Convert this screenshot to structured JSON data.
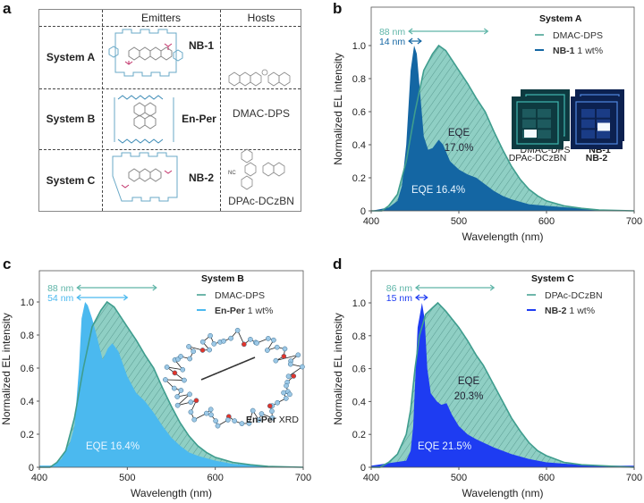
{
  "panel_letters": [
    "a",
    "b",
    "c",
    "d"
  ],
  "panel_a": {
    "headers": [
      "Emitters",
      "Hosts"
    ],
    "rows": [
      {
        "system": "System A",
        "emitter": "NB-1"
      },
      {
        "system": "System B",
        "emitter": "En-Per"
      },
      {
        "system": "System C",
        "emitter": "NB-2"
      }
    ],
    "hosts": [
      "DMAC-DPS",
      "DPAc-DCzBN"
    ],
    "host_label_nc": "NC"
  },
  "colors": {
    "host_line": "#3f9d8e",
    "host_fill": "#8fcfc4",
    "nb1": "#1466a3",
    "enper": "#4bb9ef",
    "nb2": "#1e3cf2"
  },
  "chart_data": [
    {
      "panel": "b",
      "type": "area",
      "title": "System A",
      "xlabel": "Wavelength (nm)",
      "ylabel": "Normalized EL intensity",
      "xlim": [
        400,
        700
      ],
      "ylim": [
        0,
        1.15
      ],
      "xticks": [
        "400",
        "500",
        "600",
        "700"
      ],
      "yticks": [
        "0",
        "0.2",
        "0.4",
        "0.6",
        "0.8",
        "1.0"
      ],
      "legend_placement": "top-right",
      "series": [
        {
          "name": "DMAC-DPS",
          "role": "host",
          "x": [
            400,
            412,
            420,
            430,
            440,
            450,
            460,
            465,
            470,
            477,
            485,
            490,
            500,
            510,
            520,
            530,
            540,
            550,
            560,
            570,
            580,
            590,
            600,
            620,
            640,
            660,
            700
          ],
          "y": [
            0,
            0,
            0.03,
            0.1,
            0.3,
            0.6,
            0.85,
            0.9,
            0.95,
            1.0,
            0.97,
            0.93,
            0.85,
            0.77,
            0.68,
            0.6,
            0.48,
            0.37,
            0.27,
            0.19,
            0.13,
            0.09,
            0.06,
            0.03,
            0.015,
            0.005,
            0
          ]
        },
        {
          "name": "NB-1",
          "suffix": " 1 wt%",
          "role": "dopant",
          "x": [
            400,
            420,
            430,
            435,
            440,
            445,
            449,
            452,
            456,
            460,
            465,
            470,
            477,
            482,
            490,
            500,
            510,
            520,
            530,
            540,
            550,
            560,
            580,
            600,
            650,
            700
          ],
          "y": [
            0,
            0.02,
            0.06,
            0.15,
            0.4,
            0.85,
            1.0,
            0.95,
            0.7,
            0.45,
            0.37,
            0.38,
            0.43,
            0.4,
            0.3,
            0.25,
            0.22,
            0.2,
            0.16,
            0.12,
            0.09,
            0.07,
            0.04,
            0.03,
            0.01,
            0
          ]
        }
      ],
      "fwhm": [
        {
          "label": "88 nm",
          "range": [
            443,
            533
          ],
          "series": "host"
        },
        {
          "label": "14 nm",
          "range": [
            443,
            457
          ],
          "series": "dopant"
        }
      ],
      "eqe": {
        "host_label": "EQE",
        "host_value": "17.0%",
        "dopant_label": "EQE 16.4%"
      },
      "insets": [
        "DMAC-DPS",
        "NB-1"
      ]
    },
    {
      "panel": "c",
      "type": "area",
      "title": "System B",
      "xlabel": "Wavelength (nm)",
      "ylabel": "Normalized EL intensity",
      "xlim": [
        400,
        700
      ],
      "ylim": [
        0,
        1.15
      ],
      "xticks": [
        "400",
        "500",
        "600",
        "700"
      ],
      "yticks": [
        "0",
        "0.2",
        "0.4",
        "0.6",
        "0.8",
        "1.0"
      ],
      "legend_placement": "top-right",
      "series": [
        {
          "name": "DMAC-DPS",
          "role": "host",
          "x": [
            400,
            412,
            420,
            430,
            440,
            450,
            460,
            465,
            470,
            477,
            485,
            490,
            500,
            510,
            520,
            530,
            540,
            550,
            560,
            570,
            580,
            590,
            600,
            620,
            640,
            660,
            700
          ],
          "y": [
            0,
            0,
            0.03,
            0.1,
            0.3,
            0.6,
            0.85,
            0.9,
            0.95,
            1.0,
            0.97,
            0.93,
            0.85,
            0.77,
            0.68,
            0.6,
            0.48,
            0.37,
            0.27,
            0.19,
            0.13,
            0.09,
            0.06,
            0.03,
            0.015,
            0.005,
            0
          ]
        },
        {
          "name": "En-Per",
          "suffix": " 1 wt%",
          "role": "dopant",
          "x": [
            400,
            415,
            425,
            435,
            440,
            445,
            448,
            452,
            455,
            460,
            465,
            472,
            478,
            483,
            490,
            500,
            510,
            520,
            530,
            540,
            550,
            560,
            570,
            580,
            600,
            620,
            650,
            700
          ],
          "y": [
            0.01,
            0.01,
            0.05,
            0.15,
            0.25,
            0.6,
            0.9,
            1.0,
            0.98,
            0.9,
            0.8,
            0.65,
            0.72,
            0.75,
            0.7,
            0.55,
            0.45,
            0.4,
            0.33,
            0.25,
            0.18,
            0.13,
            0.09,
            0.07,
            0.04,
            0.02,
            0.01,
            0
          ]
        }
      ],
      "fwhm": [
        {
          "label": "88 nm",
          "range": [
            443,
            533
          ],
          "series": "host"
        },
        {
          "label": "54 nm",
          "range": [
            443,
            500
          ],
          "series": "dopant"
        }
      ],
      "eqe": {
        "dopant_label": "EQE 16.4%"
      },
      "xrd_label_bold": "En-Per",
      "xrd_label": " XRD"
    },
    {
      "panel": "d",
      "type": "area",
      "title": "System C",
      "xlabel": "Wavelength (nm)",
      "ylabel": "Normalized EL intensity",
      "xlim": [
        400,
        700
      ],
      "ylim": [
        0,
        1.15
      ],
      "xticks": [
        "400",
        "500",
        "600",
        "700"
      ],
      "yticks": [
        "0",
        "0.2",
        "0.4",
        "0.6",
        "0.8",
        "1.0"
      ],
      "legend_placement": "top-right",
      "series": [
        {
          "name": "DPAc-DCzBN",
          "role": "host",
          "x": [
            400,
            410,
            420,
            430,
            440,
            445,
            450,
            455,
            462,
            470,
            476,
            485,
            500,
            510,
            520,
            528,
            540,
            550,
            560,
            570,
            580,
            590,
            600,
            620,
            640,
            700
          ],
          "y": [
            0,
            0,
            0.03,
            0.08,
            0.2,
            0.35,
            0.6,
            0.8,
            0.93,
            0.97,
            1.0,
            0.95,
            0.85,
            0.77,
            0.68,
            0.62,
            0.5,
            0.4,
            0.3,
            0.22,
            0.15,
            0.1,
            0.07,
            0.03,
            0.015,
            0
          ]
        },
        {
          "name": "NB-2",
          "suffix": " 1 wt%",
          "role": "dopant",
          "x": [
            400,
            440,
            445,
            448,
            450,
            453,
            458,
            461,
            464,
            468,
            475,
            480,
            486,
            492,
            500,
            510,
            520,
            540,
            560,
            580,
            600,
            650,
            700
          ],
          "y": [
            0.01,
            0.04,
            0.1,
            0.25,
            0.5,
            0.85,
            1.0,
            0.9,
            0.6,
            0.45,
            0.4,
            0.38,
            0.39,
            0.32,
            0.25,
            0.2,
            0.17,
            0.12,
            0.08,
            0.05,
            0.03,
            0.01,
            0.01
          ]
        }
      ],
      "fwhm": [
        {
          "label": "86 nm",
          "range": [
            451,
            540
          ],
          "series": "host"
        },
        {
          "label": "15 nm",
          "range": [
            451,
            464
          ],
          "series": "dopant"
        }
      ],
      "eqe": {
        "host_label": "EQE",
        "host_value": "20.3%",
        "dopant_label": "EQE 21.5%"
      },
      "insets": [
        "DPAc-DCzBN",
        "NB-2"
      ]
    }
  ]
}
